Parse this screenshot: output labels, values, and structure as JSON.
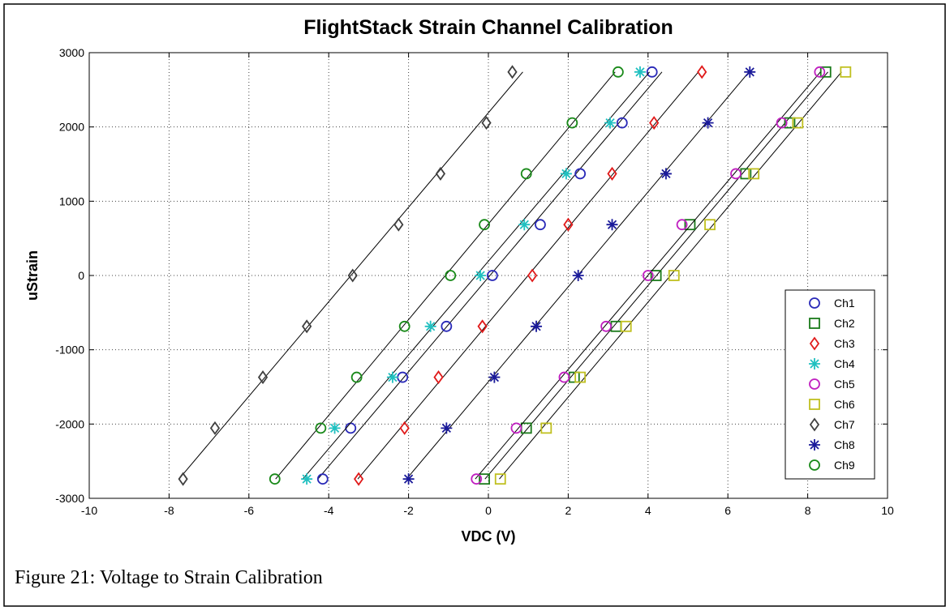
{
  "chart_data": {
    "type": "scatter",
    "title": "FlightStack Strain Channel Calibration",
    "xlabel": "VDC (V)",
    "ylabel": "uStrain",
    "caption": "Figure 21: Voltage to Strain Calibration",
    "xlim": [
      -10,
      10
    ],
    "xticks": [
      -10,
      -8,
      -6,
      -4,
      -2,
      0,
      2,
      4,
      6,
      8,
      10
    ],
    "ylim": [
      -3000,
      3000
    ],
    "yticks": [
      -3000,
      -2000,
      -1000,
      0,
      1000,
      2000,
      3000
    ],
    "grid": true,
    "legend": "lower right",
    "fit_lines": true,
    "series": [
      {
        "name": "Ch1",
        "color": "#2a2ab8",
        "marker": "circle",
        "x": [
          -4.15,
          -3.45,
          -2.15,
          -1.05,
          0.1,
          1.3,
          2.3,
          3.35,
          4.1
        ],
        "values": [
          -2740,
          -2055,
          -1370,
          -685,
          0,
          685,
          1370,
          2055,
          2740
        ]
      },
      {
        "name": "Ch2",
        "color": "#1a7a1a",
        "marker": "square",
        "x": [
          -0.1,
          0.95,
          2.15,
          3.2,
          4.2,
          5.05,
          6.45,
          7.55,
          8.45
        ],
        "values": [
          -2740,
          -2055,
          -1370,
          -685,
          0,
          685,
          1370,
          2055,
          2740
        ]
      },
      {
        "name": "Ch3",
        "color": "#e01a1a",
        "marker": "diamond",
        "x": [
          -3.25,
          -2.1,
          -1.25,
          -0.15,
          1.1,
          2.0,
          3.1,
          4.15,
          5.35
        ],
        "values": [
          -2740,
          -2055,
          -1370,
          -685,
          0,
          685,
          1370,
          2055,
          2740
        ]
      },
      {
        "name": "Ch4",
        "color": "#20c0c0",
        "marker": "star",
        "x": [
          -4.55,
          -3.85,
          -2.4,
          -1.45,
          -0.2,
          0.9,
          1.95,
          3.05,
          3.8
        ],
        "values": [
          -2740,
          -2055,
          -1370,
          -685,
          0,
          685,
          1370,
          2055,
          2740
        ]
      },
      {
        "name": "Ch5",
        "color": "#c020c0",
        "marker": "circle",
        "x": [
          -0.3,
          0.7,
          1.9,
          2.95,
          4.0,
          4.85,
          6.2,
          7.35,
          8.3
        ],
        "values": [
          -2740,
          -2055,
          -1370,
          -685,
          0,
          685,
          1370,
          2055,
          2740
        ]
      },
      {
        "name": "Ch6",
        "color": "#c0c020",
        "marker": "square",
        "x": [
          0.3,
          1.45,
          2.3,
          3.45,
          4.65,
          5.55,
          6.65,
          7.75,
          8.95
        ],
        "values": [
          -2740,
          -2055,
          -1370,
          -685,
          0,
          685,
          1370,
          2055,
          2740
        ]
      },
      {
        "name": "Ch7",
        "color": "#404040",
        "marker": "diamond",
        "x": [
          -7.65,
          -6.85,
          -5.65,
          -4.55,
          -3.4,
          -2.25,
          -1.2,
          -0.05,
          0.6
        ],
        "values": [
          -2740,
          -2055,
          -1370,
          -685,
          0,
          685,
          1370,
          2055,
          2740
        ]
      },
      {
        "name": "Ch8",
        "color": "#1a1a9a",
        "marker": "star",
        "x": [
          -2.0,
          -1.05,
          0.15,
          1.2,
          2.25,
          3.1,
          4.45,
          5.5,
          6.55
        ],
        "values": [
          -2740,
          -2055,
          -1370,
          -685,
          0,
          685,
          1370,
          2055,
          2740
        ]
      },
      {
        "name": "Ch9",
        "color": "#1a8a1a",
        "marker": "circle",
        "x": [
          -5.35,
          -4.2,
          -3.3,
          -2.1,
          -0.95,
          -0.1,
          0.95,
          2.1,
          3.25
        ],
        "values": [
          -2740,
          -2055,
          -1370,
          -685,
          0,
          685,
          1370,
          2055,
          2740
        ]
      }
    ]
  }
}
